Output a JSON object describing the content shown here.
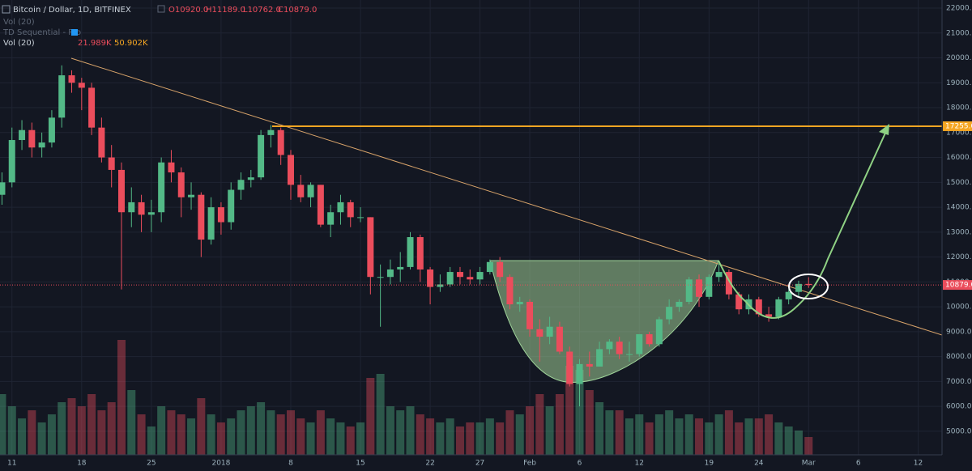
{
  "header": {
    "title": "Bitcoin / Dollar, 1D, BITFINEX",
    "open": "O10920.0",
    "high": "H11189.0",
    "low": "L10762.0",
    "close": "C10879.0",
    "indicator_1": "Vol (20)",
    "indicator_2": "TD Sequential - Pro",
    "indicator_3": "Vol (20)",
    "volume_value": "21.989K",
    "volume_ma": "50.902K"
  },
  "chart_data": {
    "type": "candlestick",
    "x": [
      0,
      1,
      2,
      3,
      4,
      5,
      6,
      7,
      8,
      9,
      10,
      11,
      12,
      13,
      14,
      15,
      16,
      17,
      18,
      19,
      20,
      21,
      22,
      23,
      24,
      25,
      26,
      27,
      28,
      29,
      30,
      31,
      32,
      33,
      34,
      35,
      36,
      37,
      38,
      39,
      40,
      41,
      42,
      43,
      44,
      45,
      46,
      47,
      48,
      49,
      50,
      51,
      52,
      53,
      54,
      55,
      56,
      57,
      58,
      59,
      60,
      61,
      62,
      63,
      64,
      65,
      66,
      67,
      68,
      69,
      70,
      71,
      72,
      73,
      74,
      75,
      76,
      77,
      78,
      79,
      80,
      81
    ],
    "open": [
      14500,
      15000,
      16700,
      17100,
      16400,
      16600,
      17600,
      19300,
      19000,
      18800,
      17200,
      16000,
      15500,
      13800,
      14200,
      13700,
      13800,
      15800,
      15400,
      14400,
      14500,
      12700,
      14000,
      13400,
      14700,
      15100,
      15200,
      16900,
      17100,
      16100,
      14900,
      14400,
      14900,
      13300,
      13800,
      14200,
      13600,
      13600,
      11200,
      11200,
      11500,
      11600,
      12800,
      11500,
      10800,
      10900,
      11400,
      11200,
      11100,
      11400,
      11800,
      11200,
      10100,
      10200,
      9100,
      8800,
      9200,
      8200,
      6900,
      7700,
      7600,
      8300,
      8600,
      8100,
      8100,
      8900,
      8500,
      9500,
      10000,
      10200,
      11100,
      10400,
      11200,
      11400,
      10500,
      9900,
      10300,
      9700,
      9600,
      10300,
      10600,
      10920
    ],
    "high": [
      15400,
      17200,
      17500,
      17400,
      17000,
      17900,
      19700,
      19500,
      19200,
      19000,
      17600,
      16500,
      15800,
      14800,
      14500,
      14300,
      16000,
      16300,
      15600,
      15000,
      14600,
      14400,
      14200,
      15000,
      15400,
      15500,
      17100,
      17300,
      17200,
      16300,
      15300,
      15000,
      14900,
      14100,
      14500,
      14300,
      14000,
      13600,
      11700,
      11900,
      12200,
      13000,
      12900,
      11600,
      11300,
      11600,
      11600,
      11500,
      11600,
      11900,
      12000,
      11300,
      10400,
      10300,
      9500,
      9600,
      9400,
      8400,
      7900,
      8200,
      8600,
      8700,
      8800,
      8600,
      8900,
      9000,
      9600,
      10300,
      10300,
      11200,
      11300,
      11300,
      11800,
      11500,
      10600,
      10500,
      10400,
      10000,
      10400,
      10700,
      11050,
      11189
    ],
    "low": [
      14100,
      14800,
      16300,
      16000,
      16000,
      16400,
      17200,
      18600,
      17900,
      16900,
      15800,
      14800,
      10700,
      13200,
      13000,
      13000,
      13400,
      15000,
      13600,
      13900,
      12000,
      12500,
      12900,
      13100,
      14300,
      14800,
      15100,
      16400,
      15700,
      14300,
      14200,
      14000,
      13200,
      12800,
      13300,
      13200,
      13400,
      10500,
      9200,
      10900,
      11000,
      11500,
      11000,
      10100,
      10600,
      10800,
      10900,
      10900,
      10900,
      11300,
      11000,
      9900,
      9800,
      8800,
      7800,
      8500,
      8100,
      6800,
      6000,
      7200,
      7600,
      8100,
      7900,
      7800,
      8000,
      8400,
      8400,
      9300,
      9800,
      10100,
      10000,
      10300,
      11000,
      10300,
      9700,
      9700,
      9600,
      9400,
      9500,
      10100,
      10400,
      10762
    ],
    "close": [
      15000,
      16700,
      17100,
      16400,
      16600,
      17600,
      19300,
      19000,
      18800,
      17200,
      16000,
      15500,
      13800,
      14200,
      13700,
      13800,
      15800,
      15400,
      14400,
      14500,
      12700,
      14000,
      13400,
      14700,
      15100,
      15200,
      16900,
      17100,
      16100,
      14900,
      14400,
      14900,
      13300,
      13800,
      14200,
      13600,
      13600,
      11200,
      11200,
      11500,
      11600,
      12800,
      11500,
      10800,
      10900,
      11400,
      11200,
      11100,
      11400,
      11800,
      11200,
      10100,
      10200,
      9100,
      8800,
      9200,
      8200,
      6900,
      7700,
      7600,
      8300,
      8600,
      8100,
      8100,
      8900,
      8500,
      9500,
      10000,
      10200,
      11100,
      10400,
      11200,
      11400,
      10500,
      9900,
      10300,
      9700,
      9600,
      10300,
      10600,
      10920,
      10879
    ],
    "volume": [
      75,
      60,
      45,
      55,
      40,
      50,
      65,
      70,
      60,
      75,
      55,
      65,
      142,
      80,
      50,
      35,
      60,
      55,
      50,
      45,
      70,
      50,
      40,
      45,
      55,
      60,
      65,
      55,
      50,
      55,
      45,
      40,
      55,
      45,
      40,
      35,
      40,
      95,
      100,
      60,
      55,
      60,
      50,
      45,
      40,
      45,
      35,
      40,
      40,
      45,
      40,
      55,
      50,
      60,
      75,
      60,
      75,
      110,
      105,
      80,
      65,
      55,
      55,
      45,
      50,
      40,
      50,
      55,
      45,
      50,
      45,
      40,
      50,
      55,
      40,
      45,
      45,
      50,
      40,
      35,
      30,
      21.989
    ],
    "up_color": "#53b987",
    "down_color": "#eb4d5c",
    "ylim": [
      4055,
      22325
    ],
    "yticks": [
      {
        "value": 5000,
        "label": "5000.0"
      },
      {
        "value": 6000,
        "label": "6000.0"
      },
      {
        "value": 7000,
        "label": "7000.0"
      },
      {
        "value": 8000,
        "label": "8000.0"
      },
      {
        "value": 9000,
        "label": "9000.0"
      },
      {
        "value": 10000,
        "label": "10000.0"
      },
      {
        "value": 11000,
        "label": "11000.0"
      },
      {
        "value": 12000,
        "label": "12000.0"
      },
      {
        "value": 13000,
        "label": "13000.0"
      },
      {
        "value": 14000,
        "label": "14000.0"
      },
      {
        "value": 15000,
        "label": "15000.0"
      },
      {
        "value": 16000,
        "label": "16000.0"
      },
      {
        "value": 17000,
        "label": "17000.0"
      },
      {
        "value": 18000,
        "label": "18000.0"
      },
      {
        "value": 19000,
        "label": "19000.0"
      },
      {
        "value": 20000,
        "label": "20000.0"
      },
      {
        "value": 21000,
        "label": "21000.0"
      },
      {
        "value": 22000,
        "label": "22000.0"
      }
    ],
    "xlim": [
      -0.2,
      94.4
    ],
    "xticks": [
      {
        "value": 1,
        "label": "11"
      },
      {
        "value": 8,
        "label": "18"
      },
      {
        "value": 15,
        "label": "25"
      },
      {
        "value": 22,
        "label": "2018"
      },
      {
        "value": 29,
        "label": "8"
      },
      {
        "value": 36,
        "label": "15"
      },
      {
        "value": 43,
        "label": "22"
      },
      {
        "value": 48,
        "label": "27"
      },
      {
        "value": 53,
        "label": "Feb"
      },
      {
        "value": 58,
        "label": "6"
      },
      {
        "value": 64,
        "label": "12"
      },
      {
        "value": 71,
        "label": "19"
      },
      {
        "value": 76,
        "label": "24"
      },
      {
        "value": 81,
        "label": "Mar"
      },
      {
        "value": 86,
        "label": "6"
      },
      {
        "value": 92,
        "label": "12"
      }
    ],
    "grid": true,
    "price_levels": [
      {
        "value": 17255,
        "label": "17255.0",
        "color": "#f5a623"
      },
      {
        "value": 10879,
        "label": "10879.0",
        "color": "#eb4d5c"
      }
    ]
  }
}
